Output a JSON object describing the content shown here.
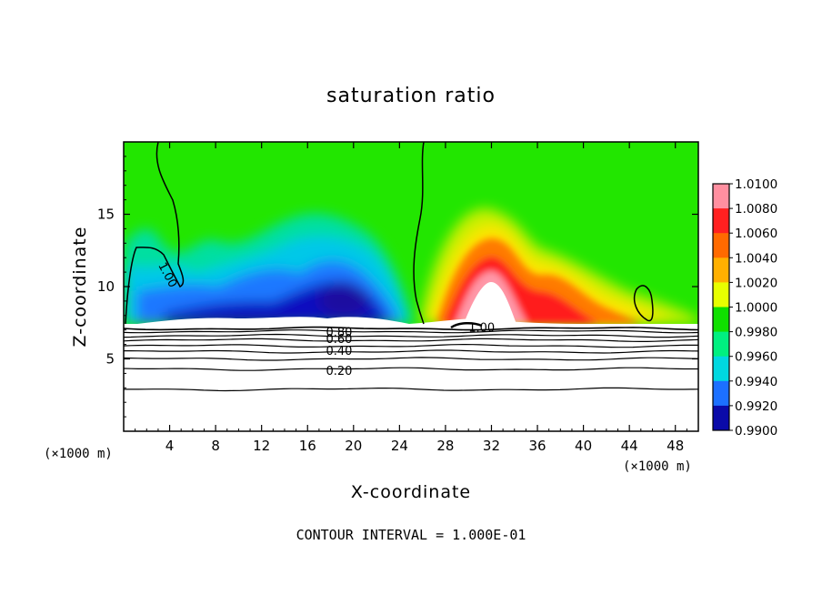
{
  "chart_data": {
    "type": "heatmap",
    "title": "saturation ratio",
    "xlabel": "X-coordinate",
    "ylabel": "Z-coordinate",
    "x_unit_label": "(×1000 m)",
    "x_unit_label_right": "(×1000 m)",
    "xlim": [
      0,
      50
    ],
    "ylim": [
      0,
      20
    ],
    "x_ticks": [
      "4",
      "8",
      "12",
      "16",
      "20",
      "24",
      "28",
      "32",
      "36",
      "40",
      "44",
      "48"
    ],
    "x_tick_values": [
      4,
      8,
      12,
      16,
      20,
      24,
      28,
      32,
      36,
      40,
      44,
      48
    ],
    "y_ticks": [
      "5",
      "10",
      "15"
    ],
    "y_tick_values": [
      5,
      10,
      15
    ],
    "footer": "CONTOUR INTERVAL = 1.000E-01",
    "colorbar": {
      "labels": [
        "1.0100",
        "1.0080",
        "1.0060",
        "1.0040",
        "1.0020",
        "1.0000",
        "0.9980",
        "0.9960",
        "0.9940",
        "0.9920",
        "0.9900"
      ],
      "values": [
        1.01,
        1.008,
        1.006,
        1.004,
        1.002,
        1.0,
        0.998,
        0.996,
        0.994,
        0.992,
        0.99
      ],
      "colors": [
        "#ff8fa0",
        "#ff2020",
        "#ff6a00",
        "#ffb000",
        "#e8ff00",
        "#10e000",
        "#00f080",
        "#00d8e0",
        "#1c70ff",
        "#0a0aa8",
        "#600090"
      ]
    },
    "contour_labels": [
      {
        "text": "0.80",
        "x": 17.6,
        "z": 6.9
      },
      {
        "text": "0.60",
        "x": 17.6,
        "z": 6.4
      },
      {
        "text": "0.40",
        "x": 17.6,
        "z": 5.6
      },
      {
        "text": "0.20",
        "x": 17.6,
        "z": 4.2
      },
      {
        "text": "1.00",
        "x": 3.0,
        "z": 11.8
      },
      {
        "text": "1.00",
        "x": 30.0,
        "z": 7.2
      }
    ],
    "contour_lines": [
      {
        "value": 0.9,
        "z": 7.1
      },
      {
        "value": 0.8,
        "z": 6.9
      },
      {
        "value": 0.7,
        "z": 6.6
      },
      {
        "value": 0.6,
        "z": 6.3
      },
      {
        "value": 0.5,
        "z": 5.9
      },
      {
        "value": 0.4,
        "z": 5.5
      },
      {
        "value": 0.3,
        "z": 5.0
      },
      {
        "value": 0.2,
        "z": 4.3
      },
      {
        "value": 0.1,
        "z": 2.9
      }
    ],
    "field_features": [
      {
        "kind": "subsaturated-region",
        "x_range": [
          0,
          26
        ],
        "z_range": [
          7.3,
          20
        ],
        "min_value": 0.99,
        "core_x": 19,
        "core_z": 9
      },
      {
        "kind": "supersaturated-region",
        "x_range": [
          26,
          50
        ],
        "z_range": [
          7.3,
          20
        ],
        "max_value": 1.01,
        "core_x": 31,
        "core_z": 10
      }
    ]
  }
}
